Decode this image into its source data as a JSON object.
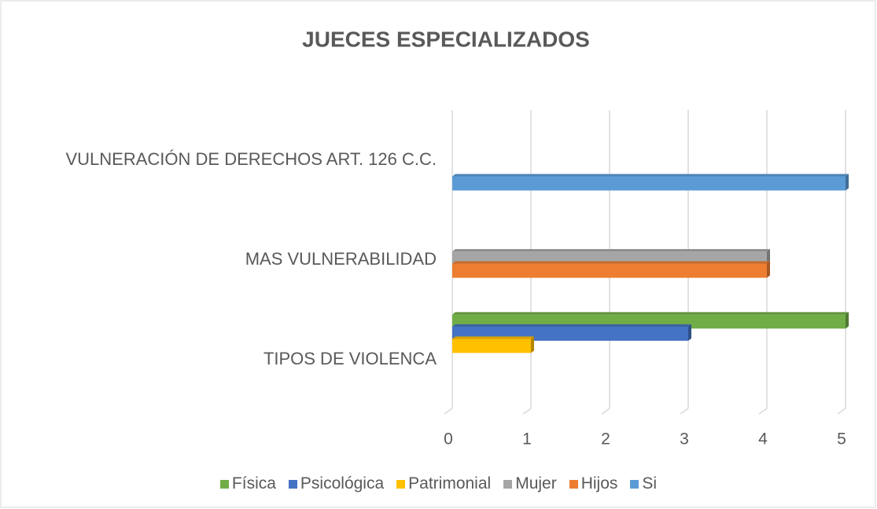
{
  "chart_data": {
    "type": "bar",
    "orientation": "horizontal",
    "title": "JUECES ESPECIALIZADOS",
    "categories": [
      "TIPOS DE VIOLENCA",
      "MAS VULNERABILIDAD",
      "VULNERACIÓN DE DERECHOS ART. 126 C.C."
    ],
    "series": [
      {
        "name": "Física",
        "color": "#70ad47",
        "values": [
          5,
          null,
          null
        ]
      },
      {
        "name": "Psicológica",
        "color": "#4472c4",
        "values": [
          3,
          null,
          null
        ]
      },
      {
        "name": "Patrimonial",
        "color": "#ffc000",
        "values": [
          1,
          null,
          null
        ]
      },
      {
        "name": "Mujer",
        "color": "#a5a5a5",
        "values": [
          null,
          4,
          null
        ]
      },
      {
        "name": "Hijos",
        "color": "#ed7d31",
        "values": [
          null,
          4,
          null
        ]
      },
      {
        "name": "Si",
        "color": "#5b9bd5",
        "values": [
          null,
          null,
          5
        ]
      }
    ],
    "xlim": [
      0,
      5
    ],
    "xticks": [
      0,
      1,
      2,
      3,
      4,
      5
    ],
    "grid": true,
    "legend": "bottom"
  }
}
